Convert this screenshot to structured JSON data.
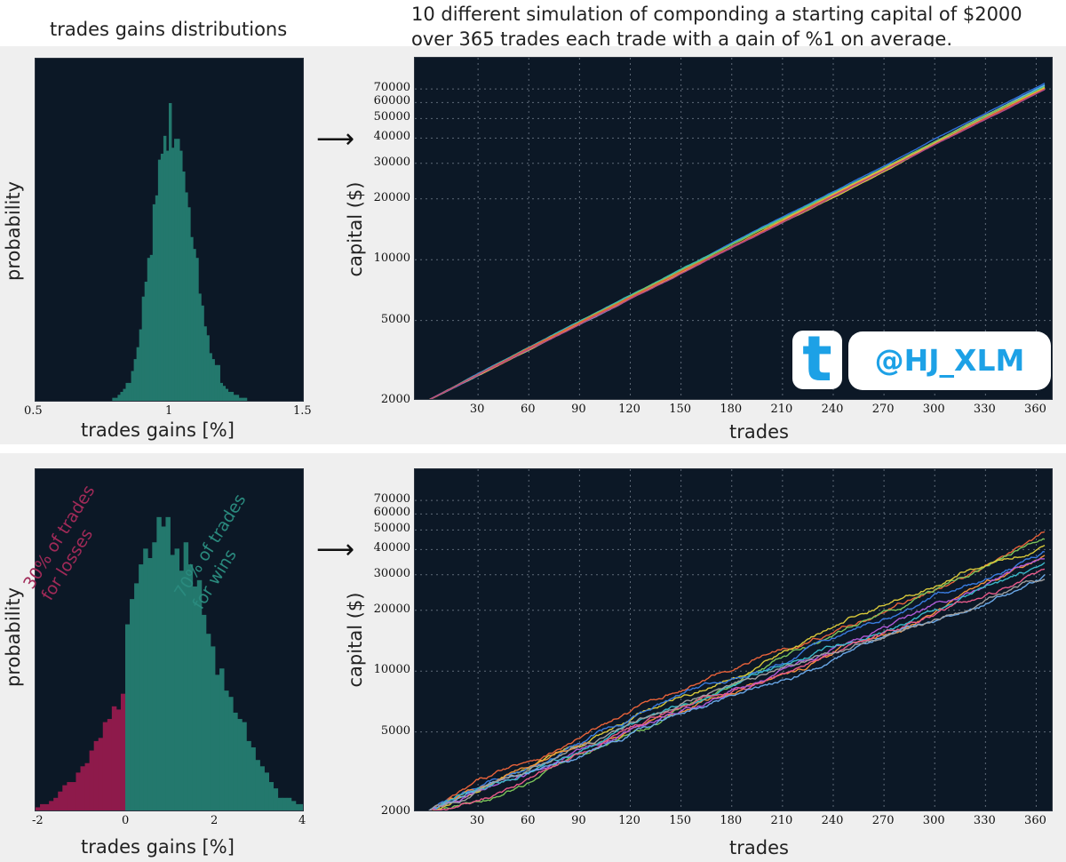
{
  "header": {
    "hist_title": "trades gains distributions",
    "main_title_line1": "10 different simulation of componding a starting capital of $2000",
    "main_title_line2": "over 365 trades each trade with a gain of %1 on average."
  },
  "watermark": {
    "icon": "t",
    "handle": "@HJ_XLM",
    "color": "#1da1e6"
  },
  "colors": {
    "plot_bg": "#0c1826",
    "hist_teal": "#23786d",
    "hist_red": "#8e1a4b",
    "annot_red": "#a12a58",
    "annot_teal": "#2a8a7e"
  },
  "annotations": {
    "loss_line1": "30% of trades",
    "loss_line2": "for losses",
    "win_line1": "70% of trades",
    "win_line2": "for wins"
  },
  "chart_data": [
    {
      "type": "bar",
      "ylabel": "probability",
      "xlabel": "trades gains [%]",
      "xlim": [
        0.5,
        1.5
      ],
      "xticks": [
        "0.5",
        "1",
        "1.5"
      ],
      "bin_centers": [
        0.79,
        0.8,
        0.81,
        0.82,
        0.83,
        0.84,
        0.85,
        0.86,
        0.87,
        0.88,
        0.89,
        0.9,
        0.91,
        0.92,
        0.93,
        0.94,
        0.95,
        0.96,
        0.97,
        0.98,
        0.99,
        1.0,
        1.01,
        1.02,
        1.03,
        1.04,
        1.05,
        1.06,
        1.07,
        1.08,
        1.09,
        1.1,
        1.11,
        1.12,
        1.13,
        1.14,
        1.15,
        1.16,
        1.17,
        1.18,
        1.19,
        1.2,
        1.21,
        1.22,
        1.23,
        1.24,
        1.25,
        1.26,
        1.27,
        1.28
      ],
      "values": [
        0.01,
        0.01,
        0.02,
        0.03,
        0.04,
        0.06,
        0.06,
        0.1,
        0.14,
        0.18,
        0.24,
        0.35,
        0.4,
        0.48,
        0.49,
        0.66,
        0.69,
        0.81,
        0.83,
        0.89,
        0.84,
        1.0,
        0.85,
        0.88,
        0.88,
        0.84,
        0.77,
        0.7,
        0.65,
        0.55,
        0.51,
        0.48,
        0.36,
        0.32,
        0.25,
        0.22,
        0.16,
        0.14,
        0.12,
        0.12,
        0.06,
        0.05,
        0.04,
        0.03,
        0.03,
        0.02,
        0.02,
        0.01,
        0.01,
        0.01
      ]
    },
    {
      "type": "line",
      "ylabel": "capital ($)",
      "xlabel": "trades",
      "yscale": "log",
      "ylim": [
        2000,
        80000
      ],
      "xlim": [
        0,
        365
      ],
      "xticks": [
        30,
        60,
        90,
        120,
        150,
        180,
        210,
        240,
        270,
        300,
        330,
        360
      ],
      "yticks": [
        2000,
        5000,
        10000,
        20000,
        30000,
        40000,
        50000,
        60000,
        70000
      ],
      "grid": true,
      "start": 2000,
      "final_values": [
        74800,
        73500,
        72800,
        72200,
        71600,
        71000,
        70600,
        70300,
        70000,
        69600
      ],
      "colors": [
        "#2f6fd8",
        "#3ba0e0",
        "#7fb2e8",
        "#3ab8b0",
        "#8bc34a",
        "#d8cf3a",
        "#e8b84a",
        "#f0903a",
        "#e05a3a",
        "#b04a8a"
      ]
    },
    {
      "type": "bar",
      "ylabel": "probability",
      "xlabel": "trades gains [%]",
      "xlim": [
        -2,
        4
      ],
      "xticks": [
        "-2",
        "0",
        "2",
        "4"
      ],
      "bin_width": 0.1,
      "bin_start": -2.0,
      "values": [
        0.01,
        0.02,
        0.02,
        0.03,
        0.04,
        0.06,
        0.08,
        0.09,
        0.09,
        0.12,
        0.14,
        0.15,
        0.19,
        0.22,
        0.23,
        0.28,
        0.29,
        0.33,
        0.32,
        0.37,
        0.59,
        0.67,
        0.72,
        0.78,
        0.83,
        0.8,
        0.85,
        0.93,
        0.9,
        0.93,
        0.81,
        0.83,
        0.76,
        0.85,
        0.78,
        0.71,
        0.73,
        0.62,
        0.56,
        0.52,
        0.43,
        0.45,
        0.38,
        0.36,
        0.31,
        0.29,
        0.28,
        0.22,
        0.2,
        0.16,
        0.14,
        0.12,
        0.09,
        0.07,
        0.04,
        0.04,
        0.04,
        0.03,
        0.02,
        0.02
      ]
    },
    {
      "type": "line",
      "ylabel": "capital ($)",
      "xlabel": "trades",
      "yscale": "log",
      "ylim": [
        2000,
        80000
      ],
      "xlim": [
        0,
        365
      ],
      "xticks": [
        30,
        60,
        90,
        120,
        150,
        180,
        210,
        240,
        270,
        300,
        330,
        360
      ],
      "yticks": [
        2000,
        5000,
        10000,
        20000,
        30000,
        40000,
        50000,
        60000,
        70000
      ],
      "grid": true,
      "start": 2000,
      "final_values": [
        49000,
        45000,
        42000,
        39000,
        37500,
        36000,
        34500,
        32000,
        30000,
        28500
      ],
      "colors": [
        "#e8623a",
        "#7cc45a",
        "#d8c83a",
        "#3a7ce0",
        "#f0903a",
        "#b05ad8",
        "#3ab8c8",
        "#e85a8a",
        "#6aa8e8",
        "#a0a0a0"
      ]
    }
  ]
}
